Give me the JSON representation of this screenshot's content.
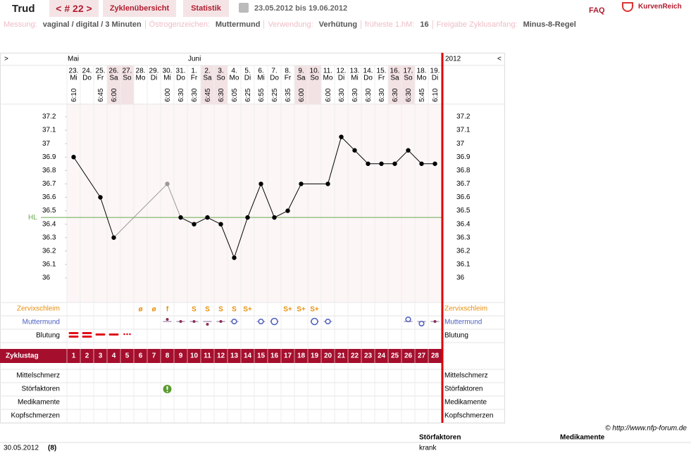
{
  "header": {
    "name": "Trud",
    "cycle_nav": "< # 22 >",
    "tabs": [
      "Zyklenübersicht",
      "Statistik"
    ],
    "date_range": "23.05.2012 bis 19.06.2012",
    "faq": "FAQ",
    "logo": "KurvenReich"
  },
  "settings": [
    {
      "label": "Messung:",
      "value": "vaginal / digital / 3 Minuten"
    },
    {
      "label": "Östrogenzeichen:",
      "value": "Muttermund"
    },
    {
      "label": "Verwendung:",
      "value": "Verhütung"
    },
    {
      "label": "früheste 1.hM:",
      "value": "16"
    },
    {
      "label": "Freigabe Zyklusanfang:",
      "value": "Minus-8-Regel"
    }
  ],
  "chart_data": {
    "type": "line",
    "nav_left": ">",
    "nav_right": "<",
    "year": "2012",
    "month_labels": [
      "Mai",
      null,
      null,
      null,
      null,
      null,
      null,
      null,
      null,
      "Juni",
      null,
      null,
      null,
      null,
      null,
      null,
      null,
      null,
      null,
      null,
      null,
      null,
      null,
      null,
      null,
      null,
      null,
      null
    ],
    "categories": [
      "23.",
      "24.",
      "25.",
      "26.",
      "27.",
      "28.",
      "29.",
      "30.",
      "31.",
      "1.",
      "2.",
      "3.",
      "4.",
      "5.",
      "6.",
      "7.",
      "8.",
      "9.",
      "10.",
      "11.",
      "12.",
      "13.",
      "14.",
      "15.",
      "16.",
      "17.",
      "18.",
      "19."
    ],
    "weekdays": [
      "Mi",
      "Do",
      "Fr",
      "Sa",
      "So",
      "Mo",
      "Di",
      "Mi",
      "Do",
      "Fr",
      "Sa",
      "So",
      "Mo",
      "Di",
      "Mi",
      "Do",
      "Fr",
      "Sa",
      "So",
      "Mo",
      "Di",
      "Mi",
      "Do",
      "Fr",
      "Sa",
      "So",
      "Mo",
      "Di"
    ],
    "times": [
      "6:10",
      null,
      "6:45",
      "6:00",
      null,
      null,
      null,
      "6:00",
      "6:30",
      "6:30",
      "6:45",
      "6:30",
      "6:05",
      "6:25",
      "6:55",
      "6:25",
      "6:35",
      "6:00",
      null,
      "6:00",
      "6:30",
      "6:30",
      "6:30",
      "6:30",
      "6:30",
      "6:30",
      "5:45",
      "6:10"
    ],
    "shaded": [
      false,
      false,
      false,
      true,
      true,
      false,
      false,
      false,
      false,
      false,
      true,
      true,
      false,
      false,
      false,
      false,
      false,
      true,
      true,
      false,
      false,
      false,
      false,
      false,
      true,
      true,
      false,
      false
    ],
    "series": [
      {
        "color": "#000000",
        "excluded_color": "#999999",
        "values": [
          36.9,
          null,
          36.6,
          36.3,
          null,
          null,
          null,
          36.7,
          36.45,
          36.4,
          36.45,
          36.4,
          36.15,
          36.45,
          36.7,
          36.45,
          36.5,
          36.7,
          null,
          36.7,
          37.05,
          36.95,
          36.85,
          36.85,
          36.85,
          36.95,
          36.85,
          36.85
        ],
        "excluded": [
          false,
          false,
          false,
          false,
          false,
          false,
          false,
          true,
          false,
          false,
          false,
          false,
          false,
          false,
          false,
          false,
          false,
          false,
          false,
          false,
          false,
          false,
          false,
          false,
          false,
          false,
          false,
          false
        ]
      }
    ],
    "ylim": [
      35.8,
      37.3
    ],
    "yticks": [
      36,
      36.1,
      36.2,
      36.3,
      36.4,
      36.5,
      36.6,
      36.7,
      36.8,
      36.9,
      37,
      37.1,
      37.2
    ],
    "coverline": {
      "label": "HL",
      "value": 36.45,
      "color": "#6aa84f"
    },
    "cervical_mucus": {
      "label": "Zervixschleim",
      "color": "#e8900c",
      "symbols": [
        null,
        null,
        null,
        null,
        null,
        "ø",
        "ø",
        "f",
        null,
        "S",
        "S",
        "S",
        "S",
        "S+",
        null,
        null,
        "S+",
        "S+",
        "S+",
        null,
        null,
        null,
        null,
        null,
        null,
        null,
        null,
        null
      ]
    },
    "cervix_label": "Muttermund",
    "bleeding_label": "Blutung",
    "cycle_day_label": "Zyklustag",
    "cycle_days": [
      1,
      2,
      3,
      4,
      5,
      6,
      7,
      8,
      9,
      10,
      11,
      12,
      13,
      14,
      15,
      16,
      17,
      18,
      19,
      20,
      21,
      22,
      23,
      24,
      25,
      26,
      27,
      28
    ],
    "extra_rows": [
      "Mittelschmerz",
      "Störfaktoren",
      "Medikamente",
      "Kopfschmerzen"
    ]
  },
  "footer": {
    "copyright": "© http://www.nfp-forum.de",
    "date": "30.05.2012",
    "day": "(8)",
    "columns": [
      "Störfaktoren",
      "Medikamente"
    ],
    "entry": "krank"
  }
}
